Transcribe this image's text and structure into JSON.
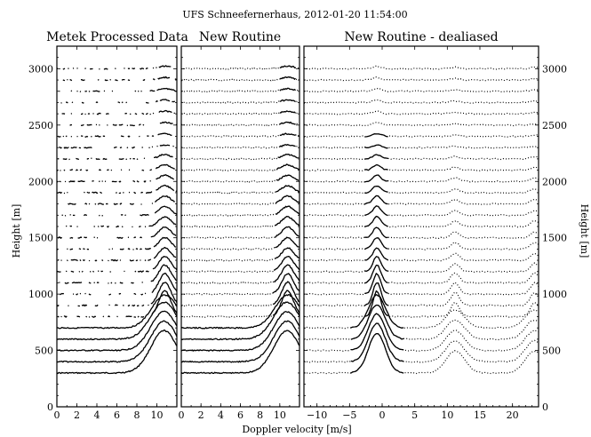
{
  "figure_title": "UFS Schneefernerhaus, 2012-01-20 11:54:00",
  "chart_data": [
    {
      "type": "line",
      "title": "Metek Processed Data",
      "xlabel": "",
      "ylabel": "Height [m]",
      "xlim": [
        0,
        12
      ],
      "ylim": [
        0,
        3200
      ],
      "xticks": [
        "0",
        "2",
        "4",
        "6",
        "8",
        "10"
      ],
      "yticks": [
        "0",
        "500",
        "1000",
        "1500",
        "2000",
        "2500",
        "3000"
      ],
      "style": "solid-fragmented",
      "ranges_m": [
        300,
        3000
      ],
      "range_step_m": 100,
      "peak_center_ms": 10.8,
      "peak_height_note": "spectra offset by range gate height"
    },
    {
      "type": "line",
      "title": "New Routine",
      "xlabel": "",
      "ylabel": "",
      "xlim": [
        0,
        12
      ],
      "ylim": [
        0,
        3200
      ],
      "xticks": [
        "0",
        "2",
        "4",
        "6",
        "8",
        "10"
      ],
      "style": "solid-lower-dotted-upper",
      "ranges_m": [
        300,
        3000
      ],
      "range_step_m": 100,
      "peak_center_ms": 10.8
    },
    {
      "type": "line",
      "title": "New Routine - dealiased",
      "xlabel": "",
      "ylabel": "Height [m]",
      "xlim": [
        -12,
        24
      ],
      "ylim": [
        0,
        3200
      ],
      "xticks": [
        "−10",
        "−5",
        "0",
        "5",
        "10",
        "15",
        "20"
      ],
      "yticks": [
        "0",
        "500",
        "1000",
        "1500",
        "2000",
        "2500",
        "3000"
      ],
      "style": "solid-central-dotted-aliases",
      "ranges_m": [
        300,
        3000
      ],
      "range_step_m": 100,
      "peak_center_ms": -0.8,
      "alias_centers_ms": [
        11.2,
        23.4
      ]
    }
  ],
  "shared_xlabel": "Doppler velocity [m/s]"
}
